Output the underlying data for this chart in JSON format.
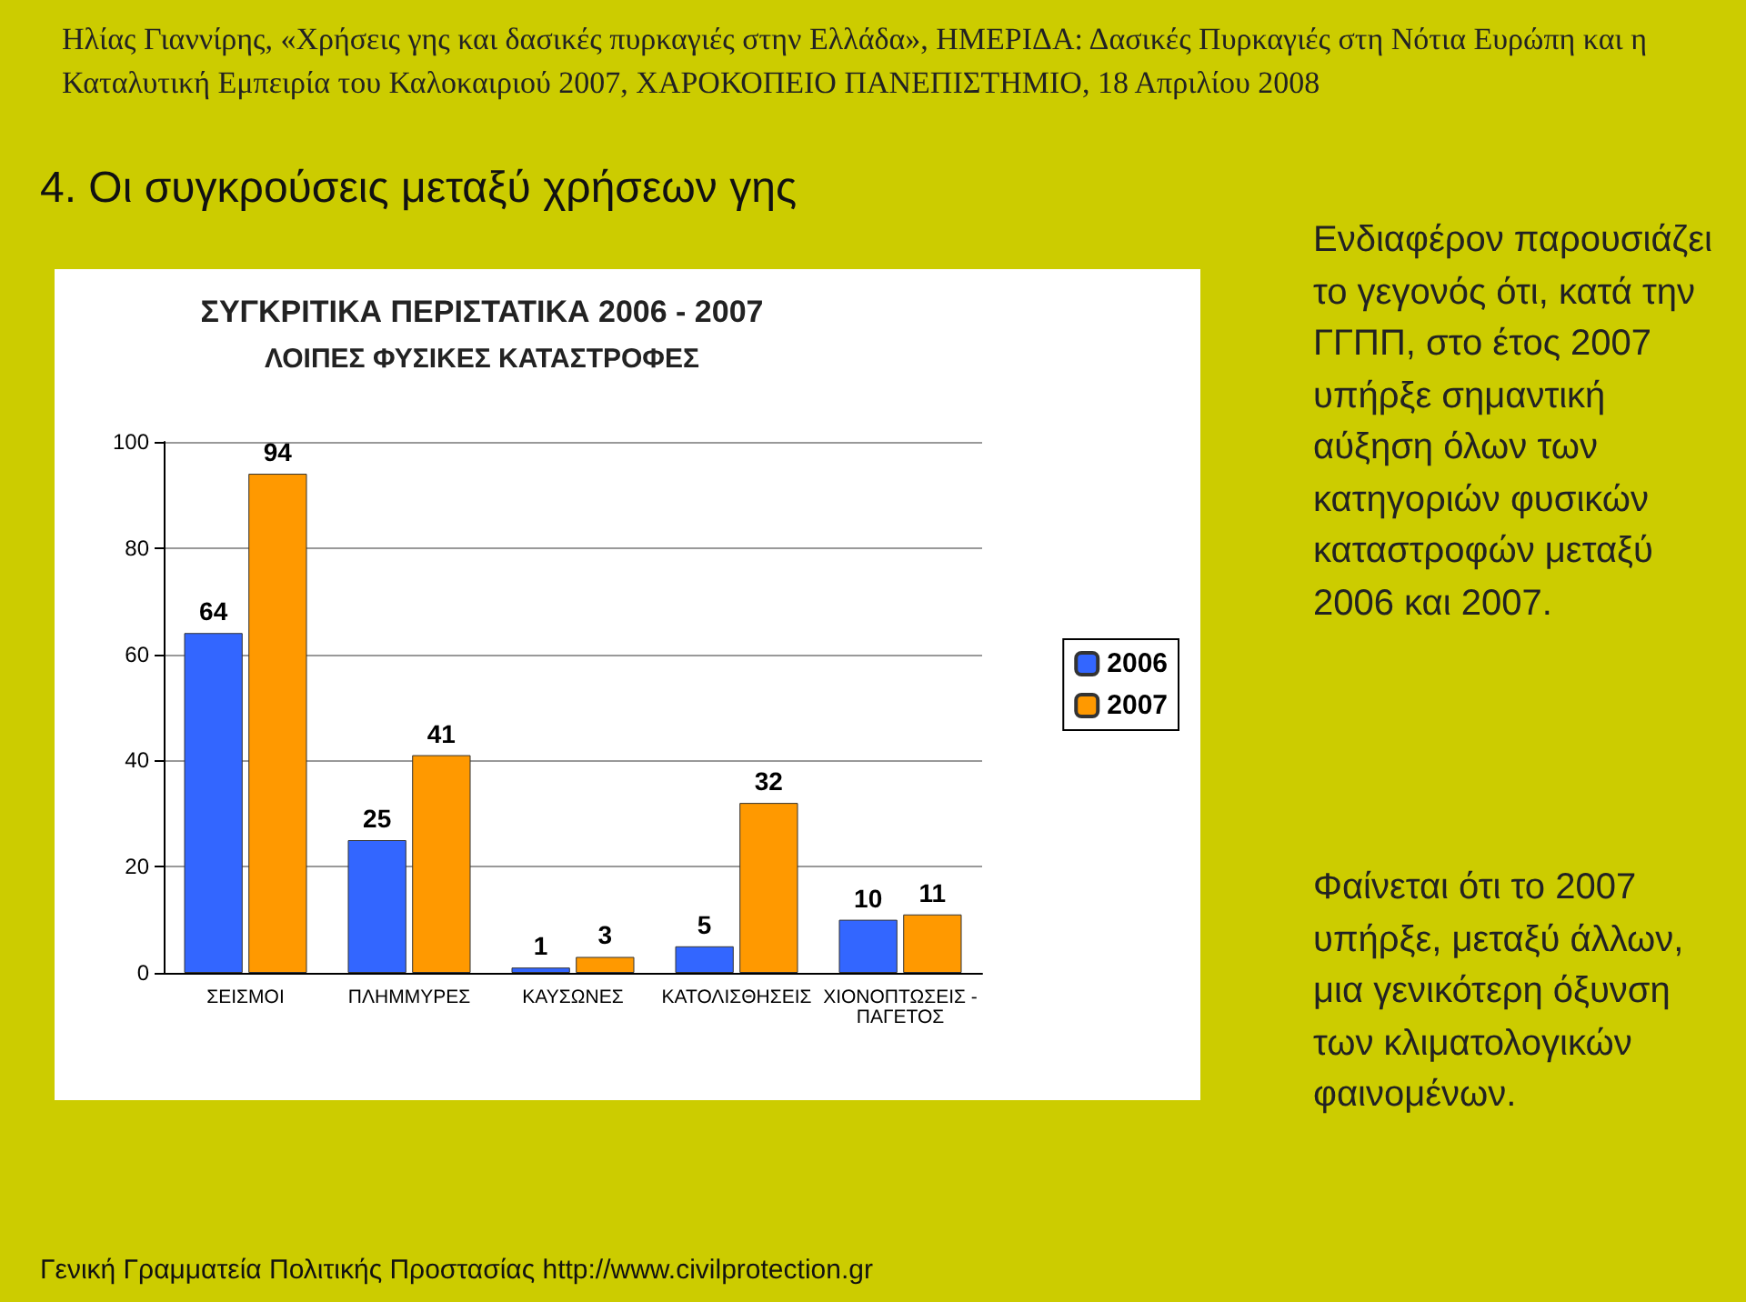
{
  "chart_data": {
    "type": "bar",
    "title": "ΣΥΓΚΡΙΤΙΚΑ ΠΕΡΙΣΤΑΤΙΚΑ 2006 - 2007",
    "subtitle": "ΛΟΙΠΕΣ ΦΥΣΙΚΕΣ ΚΑΤΑΣΤΡΟΦΕΣ",
    "categories": [
      "ΣΕΙΣΜΟΙ",
      "ΠΛΗΜΜΥΡΕΣ",
      "ΚΑΥΣΩΝΕΣ",
      "ΚΑΤΟΛΙΣΘΗΣΕΙΣ",
      "ΧΙΟΝΟΠΤΩΣΕΙΣ - ΠΑΓΕΤΟΣ"
    ],
    "series": [
      {
        "name": "2006",
        "color": "#3366ff",
        "values": [
          64,
          25,
          1,
          5,
          10
        ]
      },
      {
        "name": "2007",
        "color": "#ff9900",
        "values": [
          94,
          41,
          3,
          32,
          11
        ]
      }
    ],
    "ylim": [
      0,
      100
    ],
    "yticks": [
      0,
      20,
      40,
      60,
      80,
      100
    ],
    "grid": "y",
    "legend": "right",
    "data_labels": true,
    "annotations": [
      "Ηλίας Γιαννίρης, «Χρήσεις γης και δασικές πυρκαγιές στην Ελλάδα»,      ΗΜΕΡΙΔΑ: Δασικές Πυρκαγιές στη Νότια Ευρώπη και η Καταλυτική Εμπειρία του Καλοκαιριού 2007, ΧΑΡΟΚΟΠΕΙΟ ΠΑΝΕΠΙΣΤΗΜΙΟ, 18 Απριλίου 2008",
      "4. Οι συγκρούσεις μεταξύ χρήσεων γης",
      "Ενδιαφέρον παρουσιάζει το γεγονός ότι, κατά την ΓΓΠΠ, στο έτος 2007 υπήρξε σημαντική αύξηση όλων των κατηγοριών φυσικών καταστροφών μεταξύ 2006 και 2007.",
      "Φαίνεται ότι το 2007 υπήρξε, μεταξύ άλλων, μια γενικότερη όξυνση των κλιματολογικών φαινομένων.",
      "Γενική Γραμματεία Πολιτικής Προστασίας http://www.civilprotection.gr"
    ]
  }
}
